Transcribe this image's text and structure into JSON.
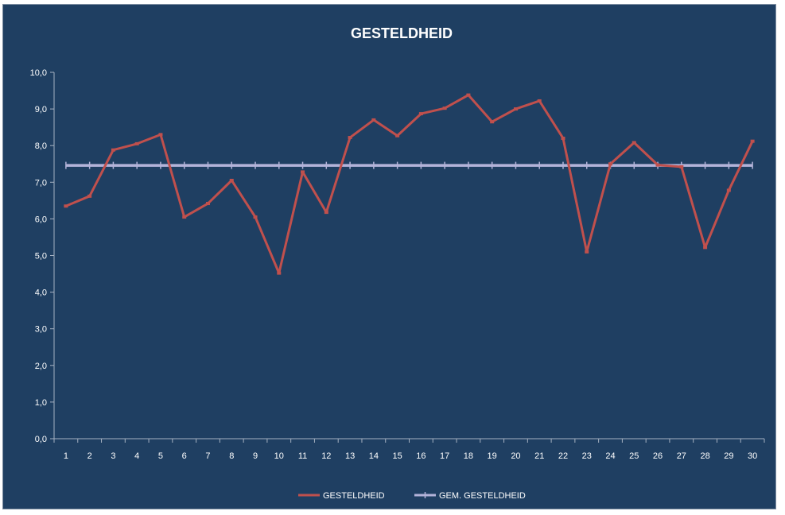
{
  "chart_data": {
    "type": "line",
    "title": "GESTELDHEID",
    "xlabel": "",
    "ylabel": "",
    "x": [
      "1",
      "2",
      "3",
      "4",
      "5",
      "6",
      "7",
      "8",
      "9",
      "10",
      "11",
      "12",
      "13",
      "14",
      "15",
      "16",
      "17",
      "18",
      "19",
      "20",
      "21",
      "22",
      "23",
      "24",
      "25",
      "26",
      "27",
      "28",
      "29",
      "30"
    ],
    "ylim": [
      0,
      10
    ],
    "y_ticks": [
      "0,0",
      "1,0",
      "2,0",
      "3,0",
      "4,0",
      "5,0",
      "6,0",
      "7,0",
      "8,0",
      "9,0",
      "10,0"
    ],
    "grid": false,
    "legend_position": "bottom",
    "series": [
      {
        "name": "GESTELDHEID",
        "color": "#c0504d",
        "values": [
          6.35,
          6.62,
          7.88,
          8.05,
          8.3,
          6.05,
          6.42,
          7.05,
          6.05,
          4.52,
          7.28,
          6.18,
          8.22,
          8.7,
          8.27,
          8.87,
          9.02,
          9.38,
          8.65,
          9.0,
          9.22,
          8.2,
          5.1,
          7.5,
          8.08,
          7.47,
          7.42,
          5.22,
          6.78,
          8.12
        ]
      },
      {
        "name": "GEM. GESTELDHEID",
        "color": "#b3b3d9",
        "values": [
          7.46,
          7.46,
          7.46,
          7.46,
          7.46,
          7.46,
          7.46,
          7.46,
          7.46,
          7.46,
          7.46,
          7.46,
          7.46,
          7.46,
          7.46,
          7.46,
          7.46,
          7.46,
          7.46,
          7.46,
          7.46,
          7.46,
          7.46,
          7.46,
          7.46,
          7.46,
          7.46,
          7.46,
          7.46,
          7.46
        ]
      }
    ]
  },
  "colors": {
    "background": "#1f3f62",
    "axis": "#a6b2c2",
    "text": "#ffffff"
  }
}
